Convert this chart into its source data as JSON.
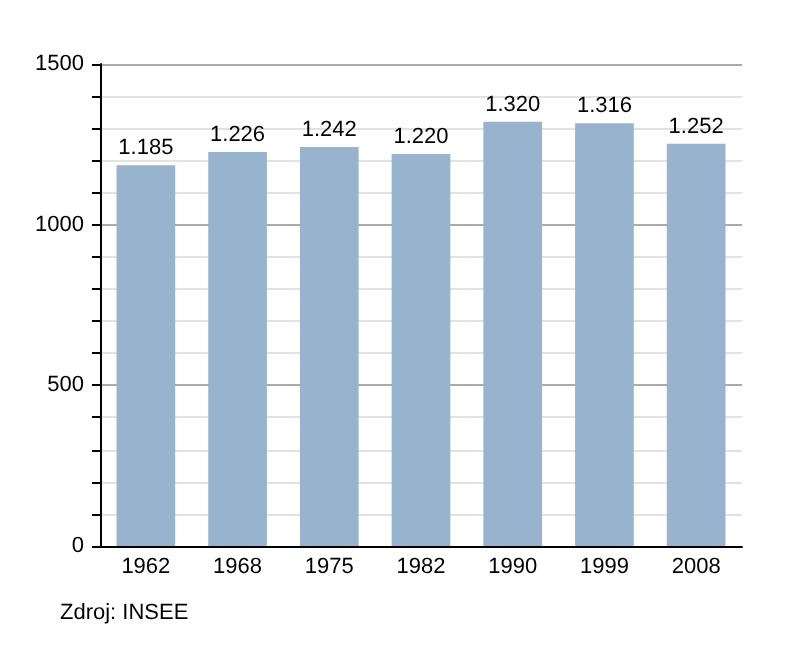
{
  "chart_data": {
    "type": "bar",
    "categories": [
      "1962",
      "1968",
      "1975",
      "1982",
      "1990",
      "1999",
      "2008"
    ],
    "values": [
      1185,
      1226,
      1242,
      1220,
      1320,
      1316,
      1252
    ],
    "value_labels": [
      "1.185",
      "1.226",
      "1.242",
      "1.220",
      "1.320",
      "1.316",
      "1.252"
    ],
    "color": "#98b3cd",
    "ylim": [
      0,
      1500
    ],
    "yticks": [
      0,
      {
        "value": 100,
        "label": null
      },
      {
        "value": 200,
        "label": null
      },
      {
        "value": 300,
        "label": null
      },
      {
        "value": 400,
        "label": null
      },
      500,
      {
        "value": 600,
        "label": null
      },
      {
        "value": 700,
        "label": null
      },
      {
        "value": 800,
        "label": null
      },
      {
        "value": 900,
        "label": null
      },
      1000,
      {
        "value": 1100,
        "label": null
      },
      {
        "value": 1200,
        "label": null
      },
      {
        "value": 1300,
        "label": null
      },
      {
        "value": 1400,
        "label": null
      },
      1500
    ],
    "grid": "y",
    "annotations": [
      "Zdroj: INSEE"
    ]
  }
}
